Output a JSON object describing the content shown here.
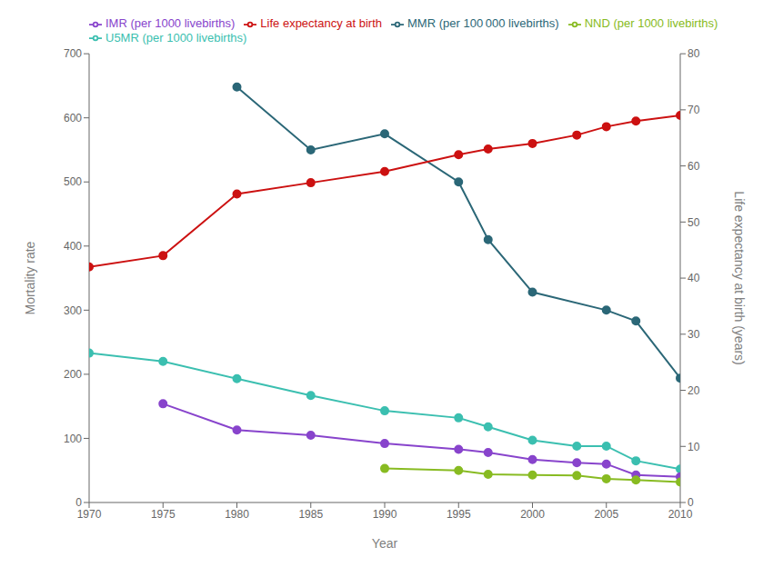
{
  "chart_data": {
    "type": "line",
    "x_label": "Year",
    "y_label": "Mortality rate",
    "y2_label": "Life expectancy at birth (years)",
    "xlim": [
      1970,
      2010
    ],
    "xticks": [
      1970,
      1975,
      1980,
      1985,
      1990,
      1995,
      2000,
      2005,
      2010
    ],
    "ylim": [
      0,
      700
    ],
    "yticks": [
      0,
      100,
      200,
      300,
      400,
      500,
      600,
      700
    ],
    "y2lim": [
      0,
      80
    ],
    "y2ticks": [
      0,
      10,
      20,
      30,
      40,
      50,
      60,
      70,
      80
    ],
    "grid": false,
    "legend": "upper left",
    "marker": "circle",
    "series": [
      {
        "name": "MMR (per 100 000 livebirths)",
        "color": "#2b6777",
        "x": [
          1980,
          1985,
          1990,
          1995,
          1997,
          2000,
          2005,
          2007,
          2010
        ],
        "values": [
          648,
          550,
          575,
          500,
          410,
          328,
          300,
          283,
          194
        ]
      },
      {
        "name": "Life expectancy at birth",
        "color": "#cc1111",
        "axis": "y2",
        "x": [
          1970,
          1975,
          1980,
          1985,
          1990,
          1995,
          1997,
          2000,
          2003,
          2005,
          2007,
          2010
        ],
        "values": [
          42,
          44,
          55,
          57,
          59,
          62,
          63,
          64,
          65.5,
          67,
          68,
          69
        ]
      },
      {
        "name": "U5MR (per 1000 livebirths)",
        "color": "#3bbfb0",
        "x": [
          1970,
          1975,
          1980,
          1985,
          1990,
          1995,
          1997,
          2000,
          2003,
          2005,
          2007,
          2010
        ],
        "values": [
          233,
          220,
          193,
          167,
          143,
          132,
          118,
          97,
          88,
          88,
          65,
          52
        ]
      },
      {
        "name": "IMR (per 1000 livebirths)",
        "color": "#8844cc",
        "x": [
          1975,
          1980,
          1985,
          1990,
          1995,
          1997,
          2000,
          2003,
          2005,
          2007,
          2010
        ],
        "values": [
          154,
          113,
          105,
          92,
          83,
          78,
          67,
          62,
          60,
          43,
          40
        ]
      },
      {
        "name": "NND (per 1000 livebirths)",
        "color": "#88bb22",
        "x": [
          1990,
          1995,
          1997,
          2000,
          2003,
          2005,
          2007,
          2010
        ],
        "values": [
          53,
          50,
          44,
          43,
          42,
          37,
          35,
          32
        ]
      }
    ]
  }
}
